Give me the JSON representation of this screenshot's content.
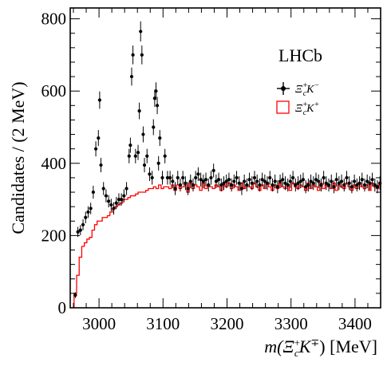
{
  "chart_data": {
    "type": "scatter",
    "experiment": "LHCb",
    "xlabel_parts": {
      "prefix": "m(",
      "particle": "Ξ",
      "sup": "+",
      "sub": "c",
      "kaon": "K",
      "kaon_sup": "∓",
      "suffix": ") [MeV]"
    },
    "ylabel": "Candidates / (2 MeV)",
    "xlim": [
      2955,
      3440
    ],
    "ylim": [
      0,
      830
    ],
    "x_ticks": [
      3000,
      3100,
      3200,
      3300,
      3400
    ],
    "x_tick_labels": [
      "3000",
      "3100",
      "3200",
      "3300",
      "3400"
    ],
    "y_ticks": [
      0,
      200,
      400,
      600,
      800
    ],
    "y_tick_labels": [
      "0",
      "200",
      "400",
      "600",
      "800"
    ],
    "bin_width": 2,
    "series": [
      {
        "name_parts": {
          "particle": "Ξ",
          "sup": "+",
          "sub": "c",
          "kaon": "K",
          "kaon_sup": "−"
        },
        "style": "points",
        "color": "#000000",
        "x": [
          2963,
          2967,
          2971,
          2975,
          2979,
          2983,
          2987,
          2991,
          2995,
          2999,
          3001,
          3003,
          3007,
          3011,
          3015,
          3019,
          3023,
          3027,
          3031,
          3035,
          3039,
          3043,
          3047,
          3049,
          3051,
          3053,
          3057,
          3061,
          3063,
          3065,
          3067,
          3069,
          3071,
          3075,
          3079,
          3083,
          3085,
          3087,
          3089,
          3091,
          3093,
          3095,
          3099,
          3103,
          3107,
          3111,
          3115,
          3119,
          3123,
          3127,
          3131,
          3135,
          3139,
          3143,
          3147,
          3151,
          3155,
          3159,
          3163,
          3167,
          3171,
          3175,
          3179,
          3183,
          3187,
          3191,
          3195,
          3199,
          3203,
          3207,
          3211,
          3215,
          3219,
          3223,
          3227,
          3231,
          3235,
          3239,
          3243,
          3247,
          3251,
          3255,
          3259,
          3263,
          3267,
          3271,
          3275,
          3279,
          3283,
          3287,
          3291,
          3295,
          3299,
          3303,
          3307,
          3311,
          3315,
          3319,
          3323,
          3327,
          3331,
          3335,
          3339,
          3343,
          3347,
          3351,
          3355,
          3359,
          3363,
          3367,
          3371,
          3375,
          3379,
          3383,
          3387,
          3391,
          3395,
          3399,
          3403,
          3407,
          3411,
          3415,
          3419,
          3423,
          3427,
          3431,
          3435,
          3439
        ],
        "y": [
          35,
          210,
          215,
          230,
          250,
          265,
          275,
          320,
          440,
          470,
          575,
          395,
          330,
          310,
          295,
          285,
          275,
          290,
          300,
          300,
          310,
          330,
          420,
          450,
          640,
          700,
          420,
          430,
          545,
          765,
          700,
          480,
          395,
          420,
          370,
          360,
          500,
          580,
          600,
          560,
          400,
          470,
          360,
          420,
          360,
          360,
          350,
          330,
          360,
          340,
          360,
          345,
          330,
          350,
          340,
          360,
          370,
          355,
          350,
          355,
          340,
          360,
          380,
          350,
          355,
          340,
          345,
          350,
          355,
          340,
          350,
          360,
          345,
          330,
          350,
          340,
          355,
          345,
          360,
          350,
          340,
          355,
          350,
          345,
          360,
          340,
          350,
          335,
          350,
          355,
          345,
          340,
          350,
          360,
          340,
          345,
          350,
          355,
          335,
          340,
          350,
          345,
          355,
          350,
          340,
          360,
          345,
          340,
          350,
          335,
          355,
          345,
          350,
          340,
          360,
          345,
          335,
          350,
          340,
          345,
          355,
          340,
          350,
          345,
          355,
          340,
          335,
          345
        ],
        "errors": [
          8,
          14,
          14,
          15,
          16,
          16,
          16,
          18,
          21,
          22,
          24,
          20,
          18,
          18,
          17,
          17,
          17,
          17,
          17,
          17,
          18,
          18,
          20,
          21,
          25,
          26,
          20,
          21,
          23,
          28,
          26,
          22,
          20,
          20,
          19,
          19,
          22,
          24,
          24,
          24,
          20,
          22,
          19,
          20,
          19,
          19,
          19,
          18,
          19,
          18,
          19,
          19,
          18,
          19,
          18,
          19,
          19,
          19,
          19,
          19,
          18,
          19,
          19,
          19,
          19,
          18,
          19,
          19,
          19,
          18,
          19,
          19,
          19,
          18,
          19,
          18,
          19,
          19,
          19,
          19,
          18,
          19,
          19,
          19,
          19,
          18,
          19,
          18,
          19,
          19,
          19,
          18,
          19,
          19,
          18,
          19,
          19,
          19,
          18,
          18,
          19,
          19,
          19,
          19,
          18,
          19,
          19,
          18,
          19,
          18,
          19,
          19,
          19,
          18,
          19,
          19,
          18,
          19,
          18,
          19,
          19,
          18,
          19,
          19,
          19,
          18,
          18,
          19
        ]
      },
      {
        "name_parts": {
          "particle": "Ξ",
          "sup": "+",
          "sub": "c",
          "kaon": "K",
          "kaon_sup": "+"
        },
        "style": "histogram",
        "color": "#ff0000",
        "x": [
          2963,
          2967,
          2971,
          2975,
          2979,
          2983,
          2987,
          2991,
          2995,
          2999,
          3003,
          3007,
          3011,
          3015,
          3019,
          3023,
          3027,
          3031,
          3035,
          3039,
          3043,
          3047,
          3051,
          3055,
          3059,
          3063,
          3067,
          3071,
          3075,
          3079,
          3083,
          3087,
          3091,
          3095,
          3099,
          3103,
          3107,
          3111,
          3115,
          3119,
          3123,
          3127,
          3131,
          3135,
          3139,
          3143,
          3147,
          3151,
          3155,
          3159,
          3163,
          3167,
          3171,
          3175,
          3179,
          3183,
          3187,
          3191,
          3195,
          3199,
          3203,
          3207,
          3211,
          3215,
          3219,
          3223,
          3227,
          3231,
          3235,
          3239,
          3243,
          3247,
          3251,
          3255,
          3259,
          3263,
          3267,
          3271,
          3275,
          3279,
          3283,
          3287,
          3291,
          3295,
          3299,
          3303,
          3307,
          3311,
          3315,
          3319,
          3323,
          3327,
          3331,
          3335,
          3339,
          3343,
          3347,
          3351,
          3355,
          3359,
          3363,
          3367,
          3371,
          3375,
          3379,
          3383,
          3387,
          3391,
          3395,
          3399,
          3403,
          3407,
          3411,
          3415,
          3419,
          3423,
          3427,
          3431,
          3435,
          3439
        ],
        "y": [
          40,
          90,
          140,
          170,
          180,
          190,
          195,
          215,
          230,
          240,
          240,
          250,
          250,
          255,
          265,
          275,
          280,
          285,
          290,
          300,
          300,
          305,
          310,
          310,
          315,
          320,
          320,
          320,
          325,
          330,
          330,
          335,
          330,
          340,
          330,
          335,
          335,
          330,
          340,
          325,
          340,
          330,
          335,
          340,
          320,
          345,
          330,
          340,
          335,
          325,
          345,
          330,
          340,
          335,
          330,
          340,
          335,
          325,
          340,
          335,
          345,
          330,
          340,
          335,
          325,
          345,
          330,
          340,
          335,
          330,
          345,
          335,
          325,
          340,
          330,
          345,
          335,
          325,
          340,
          330,
          345,
          335,
          330,
          340,
          325,
          345,
          335,
          330,
          340,
          335,
          325,
          345,
          330,
          340,
          335,
          325,
          345,
          330,
          340,
          335,
          330,
          345,
          325,
          340,
          335,
          330,
          345,
          335,
          325,
          340,
          330,
          345,
          335,
          330,
          340,
          325,
          345,
          335,
          330,
          340
        ]
      }
    ]
  }
}
